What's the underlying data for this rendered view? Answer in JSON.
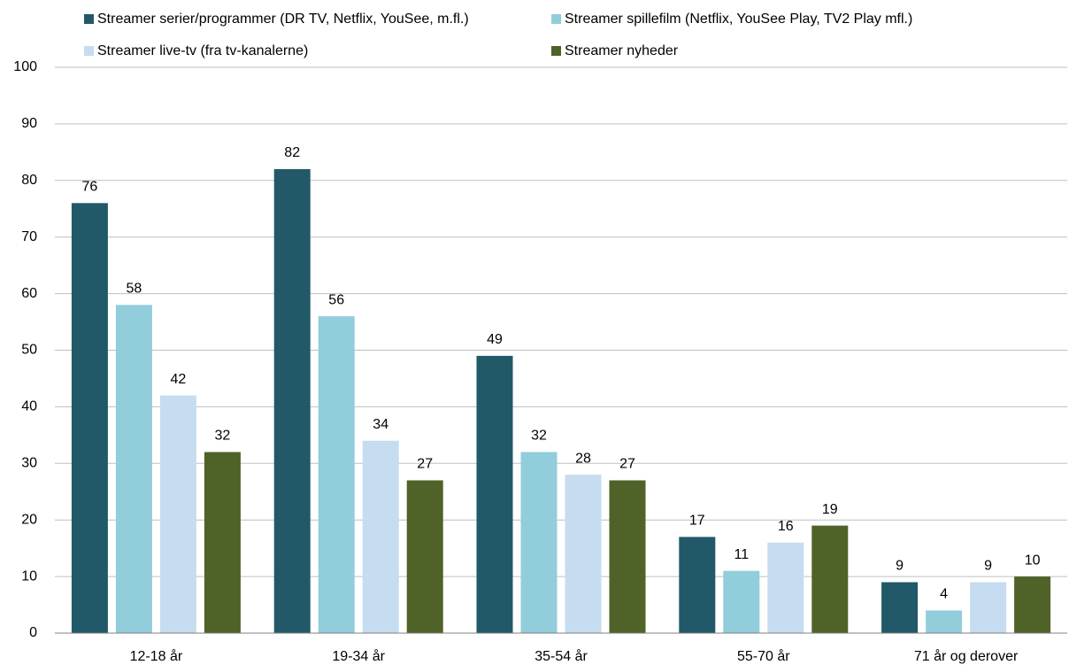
{
  "chart_data": {
    "type": "bar",
    "categories": [
      "12-18 år",
      "19-34 år",
      "35-54 år",
      "55-70 år",
      "71 år og derover"
    ],
    "series": [
      {
        "name": "Streamer serier/programmer (DR TV, Netflix, YouSee, m.fl.)",
        "color": "#215968",
        "values": [
          76,
          82,
          49,
          17,
          9
        ]
      },
      {
        "name": "Streamer spillefilm (Netflix, YouSee Play, TV2 Play mfl.)",
        "color": "#92cddc",
        "values": [
          58,
          56,
          32,
          11,
          4
        ]
      },
      {
        "name": "Streamer live-tv (fra tv-kanalerne)",
        "color": "#c6dcf0",
        "values": [
          42,
          34,
          28,
          16,
          9
        ]
      },
      {
        "name": "Streamer nyheder",
        "color": "#4f6228",
        "values": [
          32,
          27,
          27,
          19,
          10
        ]
      }
    ],
    "ylim": [
      0,
      100
    ],
    "yticks": [
      0,
      10,
      20,
      30,
      40,
      50,
      60,
      70,
      80,
      90,
      100
    ],
    "grid": true,
    "legend": "top",
    "data_labels": true
  }
}
